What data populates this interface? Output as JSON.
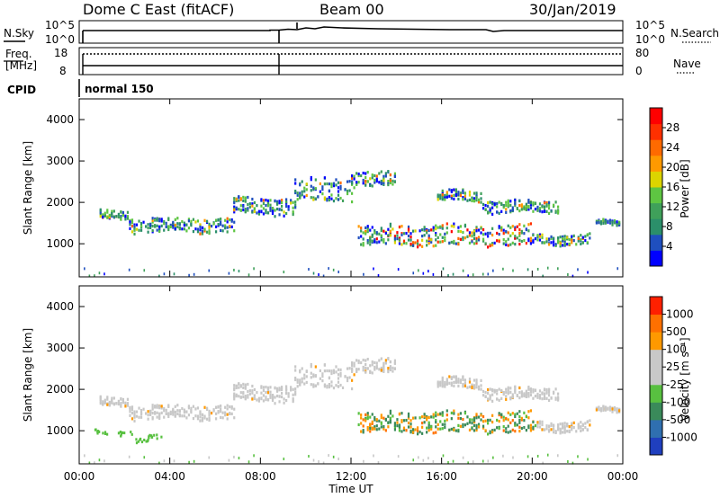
{
  "header": {
    "station": "Dome C East (fitACF)",
    "beam": "Beam 00",
    "date": "30/Jan/2019"
  },
  "top_panels": {
    "nsky_label": "N.Sky",
    "nsearch_label": "N.Search",
    "left_ticks": [
      "10^5",
      "10^0"
    ],
    "right_ticks": [
      "10^5",
      "10^0"
    ],
    "freq_label": "Freq.",
    "freq_unit": "[MHz]",
    "freq_ticks": [
      "18",
      "8"
    ],
    "nave_label": "Nave",
    "nave_ticks": [
      "80",
      "0"
    ],
    "cpid_label": "CPID",
    "cpid_value": "normal 150"
  },
  "chart_data": [
    {
      "type": "heatmap",
      "name": "power",
      "ylabel": "Slant Range [km]",
      "xlabel": "",
      "ylim": [
        200,
        4500
      ],
      "yticks": [
        "1000",
        "2000",
        "3000",
        "4000"
      ],
      "xlim_hours": [
        0,
        24
      ],
      "colorbar": {
        "label": "Power [dB]",
        "ticks": [
          "4",
          "8",
          "12",
          "16",
          "20",
          "24",
          "28"
        ],
        "colors": [
          "#0000ff",
          "#1f4fbf",
          "#2b8f6a",
          "#3fa05a",
          "#5ec542",
          "#dcd400",
          "#ff9900",
          "#ff6a00",
          "#ff3000",
          "#ff0000"
        ]
      },
      "echo_bands": [
        {
          "t0": 0.9,
          "t1": 2.2,
          "r": 1700,
          "w": 110
        },
        {
          "t0": 2.2,
          "t1": 6.8,
          "r": 1450,
          "w": 180
        },
        {
          "t0": 6.8,
          "t1": 9.5,
          "r": 1900,
          "w": 200
        },
        {
          "t0": 9.5,
          "t1": 12.0,
          "r": 2300,
          "w": 280
        },
        {
          "t0": 12.0,
          "t1": 13.9,
          "r": 2550,
          "w": 180
        },
        {
          "t0": 15.8,
          "t1": 17.8,
          "r": 2150,
          "w": 130
        },
        {
          "t0": 17.8,
          "t1": 21.2,
          "r": 1900,
          "w": 150
        },
        {
          "t0": 12.3,
          "t1": 20.0,
          "r": 1200,
          "w": 250
        },
        {
          "t0": 20.0,
          "t1": 22.6,
          "r": 1100,
          "w": 120
        },
        {
          "t0": 22.8,
          "t1": 23.9,
          "r": 1500,
          "w": 60
        }
      ]
    },
    {
      "type": "heatmap",
      "name": "velocity",
      "ylabel": "Slant Range [km]",
      "xlabel": "Time UT",
      "ylim": [
        200,
        4500
      ],
      "yticks": [
        "1000",
        "2000",
        "3000",
        "4000"
      ],
      "xticks": [
        "00:00",
        "04:00",
        "08:00",
        "12:00",
        "16:00",
        "20:00",
        "00:00"
      ],
      "colorbar": {
        "label": "Velocity [m s⁻¹]",
        "ticks": [
          "1000",
          "500",
          "100",
          "25",
          "-25",
          "-100",
          "-500",
          "-1000"
        ],
        "colors": [
          "#1f3fbf",
          "#2f6fb0",
          "#3a8a5a",
          "#58c040",
          "#c8c8c8",
          "#c8c8c8",
          "#ff9900",
          "#ff7000",
          "#ff2000"
        ]
      }
    }
  ]
}
